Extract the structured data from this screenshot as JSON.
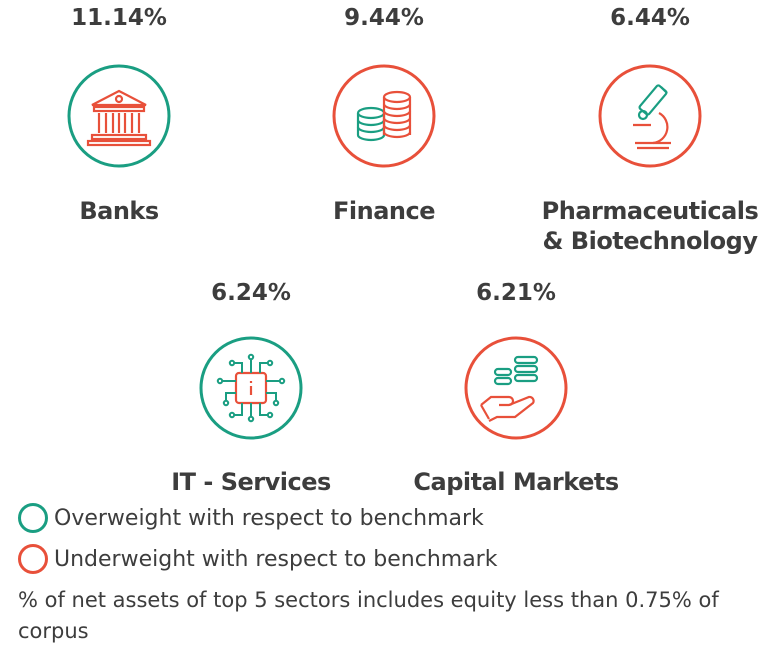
{
  "chart_data": {
    "type": "table",
    "categories": [
      "Banks",
      "Finance",
      "Pharmaceuticals & Biotechnology",
      "IT - Services",
      "Capital Markets"
    ],
    "values": [
      11.14,
      9.44,
      6.44,
      6.24,
      6.21
    ],
    "value_labels": [
      "11.14%",
      "9.44%",
      "6.44%",
      "6.24%",
      "6.21%"
    ],
    "weighting": [
      "overweight",
      "underweight",
      "underweight",
      "overweight",
      "underweight"
    ]
  },
  "sectors": [
    {
      "pct": "11.14%",
      "name": "Banks",
      "icon": "bank-icon",
      "weight": "overweight"
    },
    {
      "pct": "9.44%",
      "name": "Finance",
      "icon": "coins-icon",
      "weight": "underweight"
    },
    {
      "pct": "6.44%",
      "name_line1": "Pharmaceuticals",
      "name_line2": "& Biotechnology",
      "icon": "microscope-icon",
      "weight": "underweight"
    },
    {
      "pct": "6.24%",
      "name": "IT - Services",
      "icon": "chip-icon",
      "weight": "overweight"
    },
    {
      "pct": "6.21%",
      "name": "Capital Markets",
      "icon": "hand-coins-icon",
      "weight": "underweight"
    }
  ],
  "legend": {
    "overweight": "Overweight with respect to benchmark",
    "underweight": "Underweight with respect to benchmark"
  },
  "note": "% of net assets of top 5 sectors includes equity less than 0.75% of corpus",
  "colors": {
    "overweight": "#1a9e82",
    "underweight": "#e8503a",
    "text": "#3d3d3d"
  }
}
